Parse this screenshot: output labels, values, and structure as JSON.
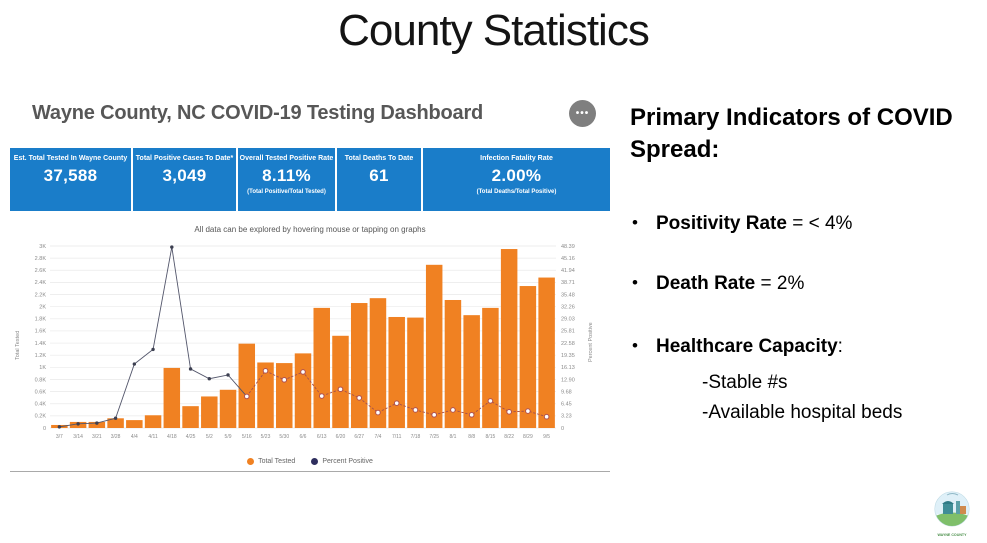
{
  "slide": {
    "title": "County Statistics"
  },
  "dashboard": {
    "title": "Wayne County, NC COVID-19 Testing Dashboard",
    "more_button": "•••",
    "tiles": [
      {
        "label": "Est. Total Tested In Wayne County",
        "value": "37,588",
        "note": ""
      },
      {
        "label": "Total Positive Cases To Date*",
        "value": "3,049",
        "note": ""
      },
      {
        "label": "Overall Tested Positive Rate",
        "value": "8.11%",
        "note": "(Total Positive/Total Tested)"
      },
      {
        "label": "Total Deaths To Date",
        "value": "61",
        "note": ""
      },
      {
        "label": "Infection Fatality Rate",
        "value": "2.00%",
        "note": "(Total Deaths/Total Positive)"
      }
    ],
    "caption": "All data can be explored by hovering mouse or tapping on graphs",
    "colors": {
      "tile_blue": "#1a7dc9",
      "bar_orange": "#f08122",
      "line_solid": "#53566b",
      "line_dashed": "#a34f4f",
      "marker_fill": "#3c3f50",
      "marker_open_stroke": "#b05050",
      "legend_navy": "#2e2e5e",
      "gridline": "#e9e9e9",
      "tick_text": "#8a8a8a"
    }
  },
  "chart_data": {
    "type": "bar+line combo",
    "categories": [
      "3/7",
      "3/14",
      "3/21",
      "3/28",
      "4/4",
      "4/11",
      "4/18",
      "4/25",
      "5/2",
      "5/9",
      "5/16",
      "5/23",
      "5/30",
      "6/6",
      "6/13",
      "6/20",
      "6/27",
      "7/4",
      "7/11",
      "7/18",
      "7/25",
      "8/1",
      "8/8",
      "8/15",
      "8/22",
      "8/29",
      "9/5"
    ],
    "series": [
      {
        "name": "Total Tested",
        "type": "bar",
        "axis": "left",
        "values": [
          50,
          100,
          100,
          160,
          130,
          210,
          990,
          360,
          520,
          630,
          1390,
          1080,
          1070,
          1230,
          1980,
          1520,
          2060,
          2140,
          1830,
          1820,
          2690,
          2110,
          1860,
          1980,
          2950,
          2340,
          2480
        ]
      },
      {
        "name": "Percent Positive",
        "type": "line",
        "axis": "right",
        "open_markers_from_index": 10,
        "values": [
          0.3,
          1.1,
          1.3,
          2.6,
          17.0,
          20.9,
          48.1,
          15.7,
          13.1,
          14.1,
          8.4,
          15.2,
          12.8,
          14.9,
          8.5,
          10.3,
          8.0,
          4.1,
          6.6,
          4.8,
          3.5,
          4.8,
          3.5,
          7.2,
          4.3,
          4.5,
          3.0
        ]
      }
    ],
    "left_axis": {
      "label": "Total Tested",
      "min": 0,
      "max": 3000,
      "ticks": [
        "3K",
        "2.8K",
        "2.6K",
        "2.4K",
        "2.2K",
        "2K",
        "1.8K",
        "1.6K",
        "1.4K",
        "1.2K",
        "1K",
        "0.8K",
        "0.6K",
        "0.4K",
        "0.2K",
        "0"
      ]
    },
    "right_axis": {
      "label": "Percent Positive",
      "min": 0,
      "max": 48.39,
      "ticks": [
        "48.39",
        "45.16",
        "41.94",
        "38.71",
        "35.48",
        "32.26",
        "29.03",
        "25.81",
        "22.58",
        "19.35",
        "16.13",
        "12.90",
        "9.68",
        "6.45",
        "3.23",
        "0"
      ]
    },
    "legend": [
      {
        "label": "Total Tested",
        "color": "#f08122"
      },
      {
        "label": "Percent Positive",
        "color": "#2e2e5e"
      }
    ],
    "grid": "horizontal only",
    "legend_position": "bottom center"
  },
  "right_panel": {
    "heading": "Primary Indicators of COVID Spread:",
    "bullets": [
      {
        "bold": "Positivity Rate",
        "rest": " = < 4%"
      },
      {
        "bold": "Death Rate",
        "rest": " = 2%"
      },
      {
        "bold": "Healthcare Capacity",
        "rest": ":"
      }
    ],
    "healthcare_sub": [
      "-Stable #s",
      "-Available hospital beds"
    ]
  },
  "logo": {
    "text": "WAYNE COUNTY"
  }
}
